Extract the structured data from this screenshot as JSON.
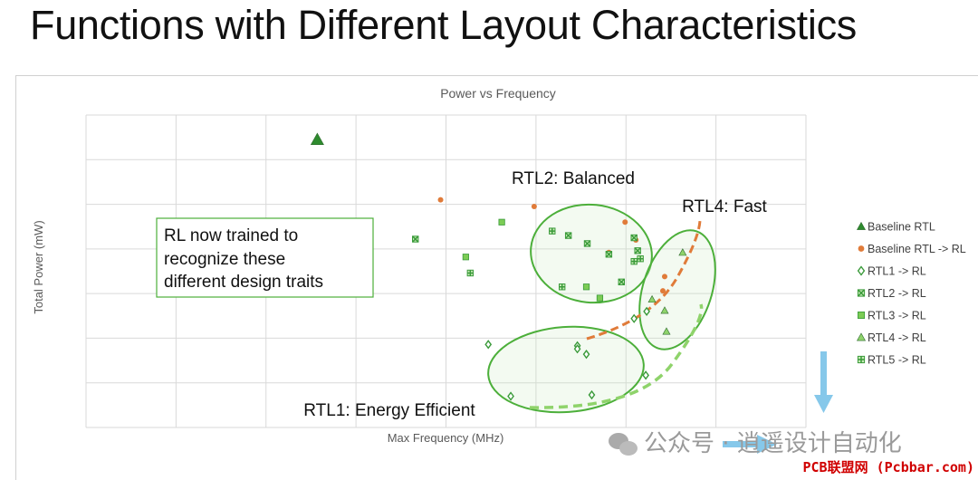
{
  "slide_title": "Functions with Different Layout Characteristics",
  "chart_data": {
    "type": "scatter",
    "title": "Power vs Frequency",
    "xlabel": "Max Frequency (MHz)",
    "ylabel": "Total Power (mW)",
    "grid": true,
    "tick_labels_shown": false,
    "legend_position": "right",
    "x_range": [
      0,
      8
    ],
    "y_range": [
      0,
      7
    ],
    "series": [
      {
        "name": "Baseline RTL",
        "marker": "triangle",
        "color": "#2e8b2e",
        "points": [
          [
            2.57,
            6.45
          ]
        ]
      },
      {
        "name": "Baseline RTL -> RL",
        "marker": "circle",
        "color": "#e07b39",
        "points": [
          [
            3.94,
            5.1
          ],
          [
            4.98,
            4.95
          ],
          [
            5.99,
            4.6
          ],
          [
            6.11,
            4.2
          ],
          [
            5.81,
            3.92
          ],
          [
            6.43,
            3.38
          ],
          [
            6.41,
            3.06
          ]
        ]
      },
      {
        "name": "RTL1 -> RL",
        "marker": "diamond",
        "color": "#3a9a3a",
        "points": [
          [
            4.47,
            1.86
          ],
          [
            5.46,
            1.83
          ],
          [
            5.46,
            1.76
          ],
          [
            5.56,
            1.64
          ],
          [
            6.09,
            2.44
          ],
          [
            6.23,
            2.6
          ],
          [
            6.22,
            1.17
          ],
          [
            5.62,
            0.73
          ],
          [
            4.72,
            0.7
          ]
        ]
      },
      {
        "name": "RTL2 -> RL",
        "marker": "x-square",
        "color": "#3a9a3a",
        "points": [
          [
            3.66,
            4.22
          ],
          [
            5.36,
            4.3
          ],
          [
            5.57,
            4.12
          ],
          [
            5.81,
            3.88
          ],
          [
            6.09,
            4.25
          ],
          [
            6.13,
            3.96
          ],
          [
            5.95,
            3.26
          ]
        ]
      },
      {
        "name": "RTL3 -> RL",
        "marker": "square",
        "color": "#7ccc55",
        "points": [
          [
            4.62,
            4.6
          ],
          [
            4.22,
            3.82
          ],
          [
            5.56,
            3.15
          ],
          [
            5.71,
            2.9
          ]
        ]
      },
      {
        "name": "RTL4 -> RL",
        "marker": "triangle",
        "color": "#8fd36b",
        "points": [
          [
            6.63,
            3.92
          ],
          [
            6.29,
            2.87
          ],
          [
            6.43,
            2.62
          ],
          [
            6.45,
            2.15
          ]
        ]
      },
      {
        "name": "RTL5 -> RL",
        "marker": "plus-square",
        "color": "#3a9a3a",
        "points": [
          [
            4.27,
            3.46
          ],
          [
            5.18,
            4.4
          ],
          [
            6.09,
            3.72
          ],
          [
            6.16,
            3.78
          ],
          [
            5.29,
            3.15
          ]
        ]
      }
    ],
    "annotations": {
      "balanced": "RTL2: Balanced",
      "fast": "RTL4: Fast",
      "efficient": "RTL1: Energy Efficient",
      "callout_lines": [
        "RL now trained to",
        "recognize these",
        "different design traits"
      ]
    }
  },
  "watermark": {
    "wechat": "公众号 · 逍遥设计自动化",
    "site": "PCB联盟网 (Pcbbar.com)"
  }
}
